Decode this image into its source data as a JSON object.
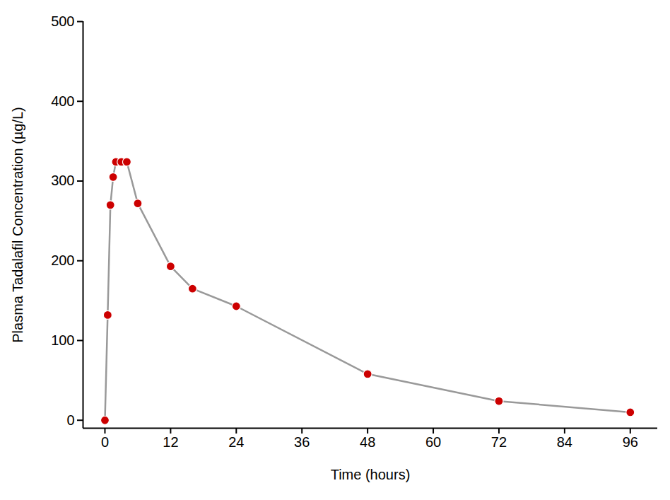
{
  "chart_data": {
    "type": "line",
    "x_label": "Time (hours)",
    "y_label": "Plasma Tadalafil Concentration (µg/L)",
    "x": [
      0,
      0.5,
      1,
      1.5,
      2,
      3,
      4,
      6,
      12,
      16,
      24,
      48,
      72,
      96
    ],
    "series": [
      {
        "name": "Tadalafil",
        "color": "#cc0000",
        "line_color": "#999999",
        "marker": "circle",
        "line_style": "solid",
        "values": [
          0,
          132,
          270,
          305,
          324,
          324,
          324,
          272,
          193,
          165,
          143,
          58,
          24,
          10
        ]
      }
    ],
    "xlim": [
      -4,
      101
    ],
    "xticks": [
      0,
      12,
      24,
      36,
      48,
      60,
      72,
      84,
      96
    ],
    "ylim": [
      -10,
      500
    ],
    "yticks": [
      0,
      100,
      200,
      300,
      400,
      500
    ],
    "grid": false
  }
}
